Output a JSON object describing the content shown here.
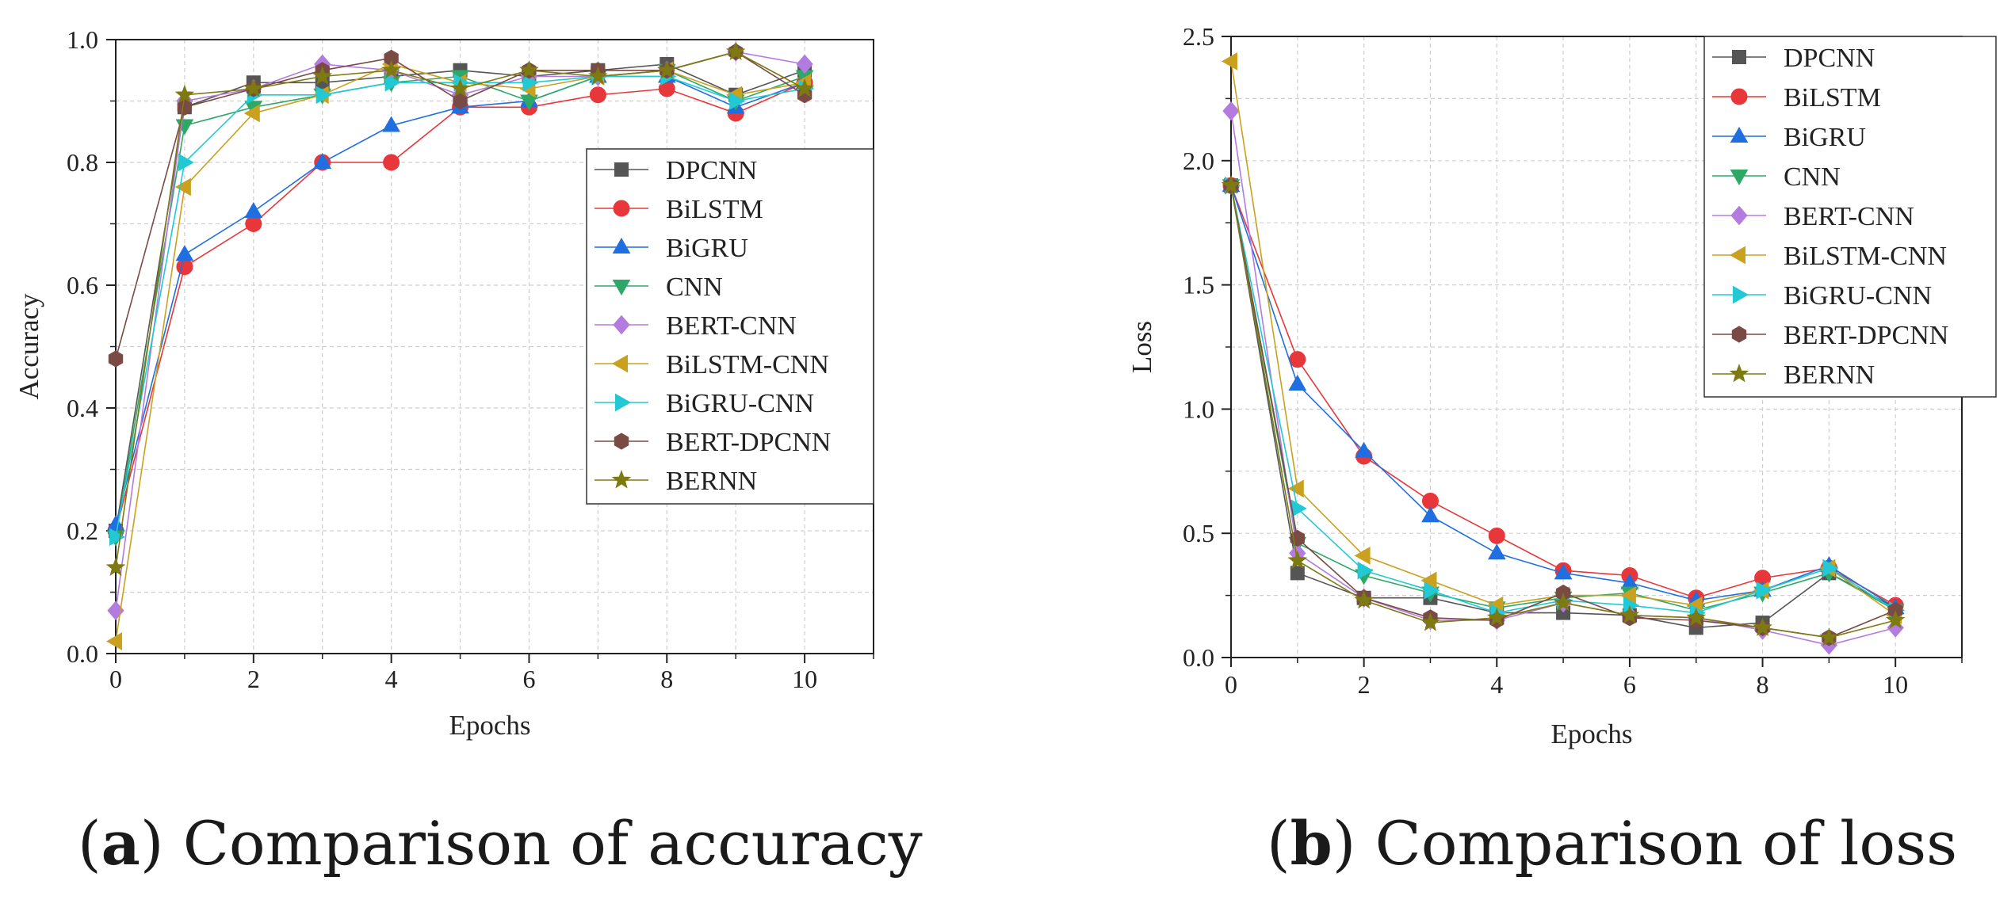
{
  "captions": {
    "a": {
      "open": "(",
      "letter": "a",
      "close": ")",
      "text": " Comparison of accuracy"
    },
    "b": {
      "open": "(",
      "letter": "b",
      "close": ")",
      "text": " Comparison of loss"
    }
  },
  "series_styles": [
    {
      "name": "DPCNN",
      "marker": "square",
      "fill": "#555555",
      "line": "#555555"
    },
    {
      "name": "BiLSTM",
      "marker": "circle",
      "fill": "#e8373a",
      "line": "#e8373a"
    },
    {
      "name": "BiGRU",
      "marker": "triangle-up",
      "fill": "#1f6fe0",
      "line": "#1f6fe0"
    },
    {
      "name": "CNN",
      "marker": "triangle-down",
      "fill": "#2ea866",
      "line": "#2ea866"
    },
    {
      "name": "BERT-CNN",
      "marker": "diamond",
      "fill": "#b37ae0",
      "line": "#b37ae0"
    },
    {
      "name": "BiLSTM-CNN",
      "marker": "triangle-left",
      "fill": "#c9a11e",
      "line": "#c9a11e"
    },
    {
      "name": "BiGRU-CNN",
      "marker": "triangle-right",
      "fill": "#22c8d4",
      "line": "#22c8d4"
    },
    {
      "name": "BERT-DPCNN",
      "marker": "hexagon",
      "fill": "#7a4a44",
      "line": "#7a4a44"
    },
    {
      "name": "BERNN",
      "marker": "star",
      "fill": "#7d7a12",
      "line": "#7d7a12"
    }
  ],
  "chart_data": [
    {
      "id": "accuracy",
      "type": "line",
      "title": "",
      "xlabel": "Epochs",
      "ylabel": "Accuracy",
      "xlim": [
        0,
        11
      ],
      "ylim": [
        0,
        1.0
      ],
      "xticks": [
        0,
        2,
        4,
        6,
        8,
        10
      ],
      "xtick_labels": [
        "0",
        "2",
        "4",
        "6",
        "8",
        "10"
      ],
      "yticks": [
        0,
        0.2,
        0.4,
        0.6,
        0.8,
        1.0
      ],
      "ytick_labels": [
        "0.0",
        "0.2",
        "0.4",
        "0.6",
        "0.8",
        "1.0"
      ],
      "grid": true,
      "legend_position": "center-right",
      "x": [
        0,
        1,
        2,
        3,
        4,
        5,
        6,
        7,
        8,
        9,
        10
      ],
      "series": [
        {
          "name": "DPCNN",
          "values": [
            0.2,
            0.89,
            0.93,
            0.93,
            0.94,
            0.95,
            0.94,
            0.95,
            0.96,
            0.91,
            0.95
          ]
        },
        {
          "name": "BiLSTM",
          "values": [
            0.2,
            0.63,
            0.7,
            0.8,
            0.8,
            0.89,
            0.89,
            0.91,
            0.92,
            0.88,
            0.93
          ]
        },
        {
          "name": "BiGRU",
          "values": [
            0.21,
            0.65,
            0.72,
            0.8,
            0.86,
            0.89,
            0.9,
            0.94,
            0.94,
            0.89,
            0.93
          ]
        },
        {
          "name": "CNN",
          "values": [
            0.19,
            0.86,
            0.89,
            0.91,
            0.93,
            0.94,
            0.9,
            0.94,
            0.95,
            0.9,
            0.94
          ]
        },
        {
          "name": "BERT-CNN",
          "values": [
            0.07,
            0.9,
            0.92,
            0.96,
            0.95,
            0.91,
            0.94,
            0.94,
            0.95,
            0.98,
            0.96
          ]
        },
        {
          "name": "BiLSTM-CNN",
          "values": [
            0.02,
            0.76,
            0.88,
            0.91,
            0.96,
            0.93,
            0.92,
            0.94,
            0.95,
            0.91,
            0.93
          ]
        },
        {
          "name": "BiGRU-CNN",
          "values": [
            0.19,
            0.8,
            0.91,
            0.91,
            0.93,
            0.93,
            0.93,
            0.94,
            0.94,
            0.9,
            0.92
          ]
        },
        {
          "name": "BERT-DPCNN",
          "values": [
            0.48,
            0.89,
            0.92,
            0.95,
            0.97,
            0.9,
            0.95,
            0.95,
            0.95,
            0.98,
            0.91
          ]
        },
        {
          "name": "BERNN",
          "values": [
            0.14,
            0.91,
            0.92,
            0.94,
            0.95,
            0.92,
            0.95,
            0.94,
            0.95,
            0.98,
            0.92
          ]
        }
      ]
    },
    {
      "id": "loss",
      "type": "line",
      "title": "",
      "xlabel": "Epochs",
      "ylabel": "Loss",
      "xlim": [
        0,
        11
      ],
      "ylim": [
        0,
        2.5
      ],
      "xticks": [
        0,
        2,
        4,
        6,
        8,
        10
      ],
      "xtick_labels": [
        "0",
        "2",
        "4",
        "6",
        "8",
        "10"
      ],
      "yticks": [
        0,
        0.5,
        1.0,
        1.5,
        2.0,
        2.5
      ],
      "ytick_labels": [
        "0.0",
        "0.5",
        "1.0",
        "1.5",
        "2.0",
        "2.5"
      ],
      "grid": true,
      "legend_position": "top-right",
      "x": [
        0,
        1,
        2,
        3,
        4,
        5,
        6,
        7,
        8,
        9,
        10
      ],
      "series": [
        {
          "name": "DPCNN",
          "values": [
            1.9,
            0.34,
            0.24,
            0.24,
            0.18,
            0.18,
            0.17,
            0.12,
            0.14,
            0.34,
            0.2
          ]
        },
        {
          "name": "BiLSTM",
          "values": [
            1.9,
            1.2,
            0.81,
            0.63,
            0.49,
            0.35,
            0.33,
            0.24,
            0.32,
            0.36,
            0.21
          ]
        },
        {
          "name": "BiGRU",
          "values": [
            1.9,
            1.1,
            0.83,
            0.57,
            0.42,
            0.34,
            0.3,
            0.23,
            0.27,
            0.37,
            0.2
          ]
        },
        {
          "name": "CNN",
          "values": [
            1.9,
            0.46,
            0.33,
            0.26,
            0.2,
            0.24,
            0.26,
            0.19,
            0.26,
            0.34,
            0.19
          ]
        },
        {
          "name": "BERT-CNN",
          "values": [
            2.2,
            0.42,
            0.24,
            0.15,
            0.15,
            0.22,
            0.17,
            0.16,
            0.11,
            0.05,
            0.12
          ]
        },
        {
          "name": "BiLSTM-CNN",
          "values": [
            2.4,
            0.68,
            0.41,
            0.31,
            0.21,
            0.25,
            0.25,
            0.21,
            0.27,
            0.36,
            0.17
          ]
        },
        {
          "name": "BiGRU-CNN",
          "values": [
            1.9,
            0.6,
            0.35,
            0.27,
            0.18,
            0.23,
            0.21,
            0.18,
            0.27,
            0.36,
            0.19
          ]
        },
        {
          "name": "BERT-DPCNN",
          "values": [
            1.9,
            0.48,
            0.24,
            0.16,
            0.15,
            0.26,
            0.16,
            0.15,
            0.12,
            0.08,
            0.19
          ]
        },
        {
          "name": "BERNN",
          "values": [
            1.9,
            0.39,
            0.23,
            0.14,
            0.16,
            0.22,
            0.17,
            0.16,
            0.12,
            0.08,
            0.15
          ]
        }
      ]
    }
  ]
}
